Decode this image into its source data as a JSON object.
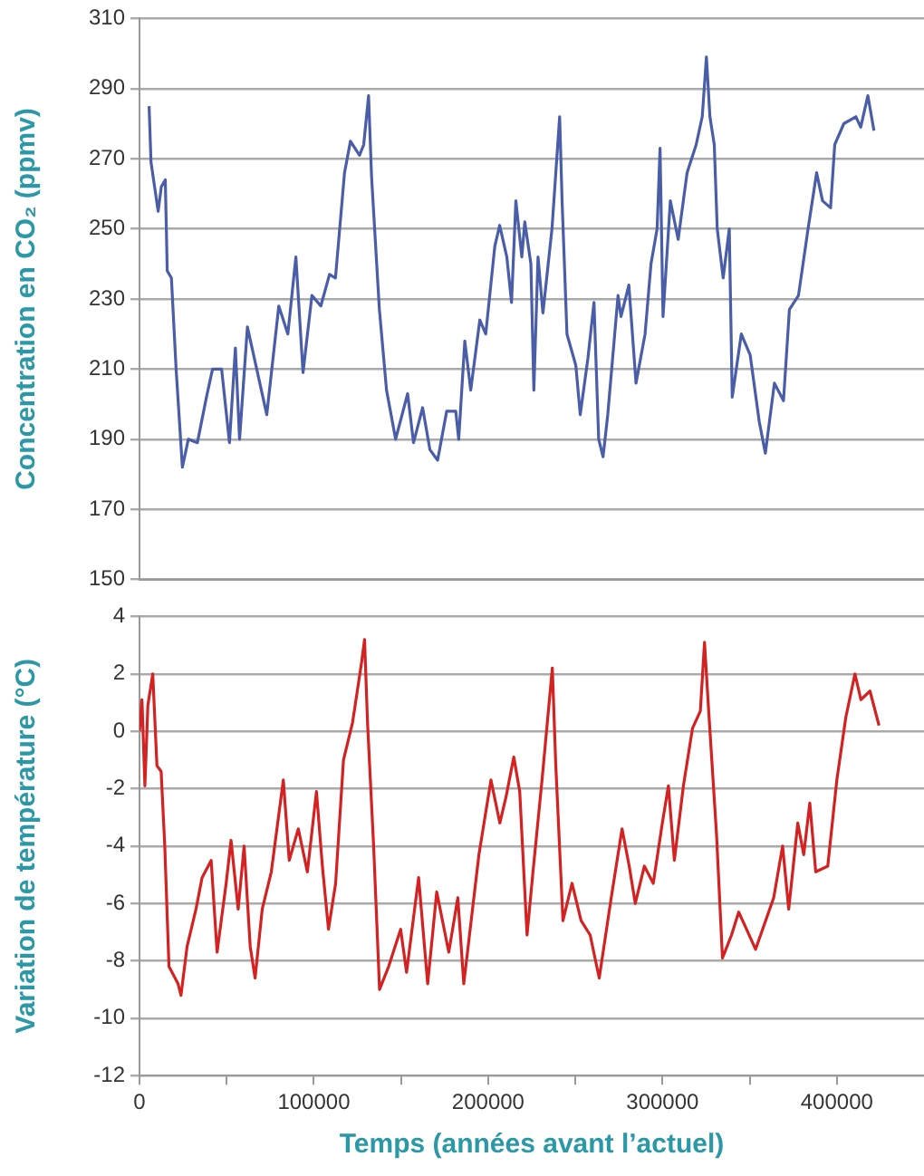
{
  "chart_data": [
    {
      "type": "line",
      "ylabel": "Concentration en CO₂ (ppmv)",
      "grid": "y",
      "tick_labels": "y",
      "xlim": [
        0,
        450000
      ],
      "xticks": [
        0,
        {
          "value": 50000,
          "label": null
        },
        100000,
        {
          "value": 150000,
          "label": null
        },
        200000,
        {
          "value": 250000,
          "label": null
        },
        300000,
        {
          "value": 350000,
          "label": null
        },
        400000
      ],
      "ylim": [
        150,
        310
      ],
      "yticks": [
        150,
        170,
        190,
        210,
        230,
        250,
        270,
        290,
        310
      ],
      "x": [
        5500,
        6600,
        10700,
        12500,
        14800,
        15900,
        18300,
        21000,
        24600,
        28000,
        33200,
        38400,
        41900,
        47100,
        51600,
        55000,
        57400,
        61900,
        73000,
        79900,
        85100,
        89700,
        93800,
        98900,
        104000,
        109000,
        112400,
        117600,
        121000,
        126200,
        128600,
        131400,
        133100,
        137600,
        141700,
        146900,
        153800,
        157200,
        162400,
        166600,
        171000,
        176200,
        181400,
        183100,
        186600,
        190000,
        195200,
        198600,
        203800,
        206600,
        210700,
        213400,
        215900,
        219300,
        221000,
        224500,
        226200,
        228600,
        231400,
        236600,
        241000,
        242400,
        245200,
        250300,
        252800,
        257200,
        260700,
        263400,
        265900,
        268600,
        274500,
        276200,
        280700,
        284800,
        290000,
        293400,
        296900,
        298600,
        300300,
        304500,
        309000,
        314100,
        319300,
        322800,
        325200,
        327200,
        329700,
        331400,
        334800,
        338300,
        340000,
        345200,
        350300,
        355500,
        359000,
        364200,
        369400,
        372800,
        378000,
        383200,
        388400,
        391800,
        396400,
        398800,
        404000,
        410900,
        413700,
        417800,
        421300
      ],
      "series": [
        {
          "color": "#4a5da8",
          "values": [
            285,
            269,
            255,
            262,
            264,
            238,
            236,
            210,
            182,
            190,
            189,
            202,
            210,
            210,
            189,
            216,
            190,
            222,
            197,
            228,
            220,
            242,
            209,
            231,
            228,
            237,
            236,
            266,
            275,
            271,
            274,
            288,
            265,
            227,
            204,
            190,
            203,
            189,
            199,
            187,
            184,
            198,
            198,
            190,
            218,
            204,
            224,
            220,
            245,
            251,
            242,
            229,
            258,
            242,
            252,
            240,
            204,
            242,
            226,
            250,
            282,
            258,
            220,
            211,
            197,
            213,
            229,
            190,
            185,
            197,
            231,
            225,
            234,
            206,
            220,
            240,
            250,
            273,
            225,
            258,
            247,
            266,
            274,
            282,
            299,
            282,
            274,
            250,
            236,
            250,
            202,
            220,
            214,
            195,
            186,
            206,
            201,
            227,
            231,
            249,
            266,
            258,
            256,
            274,
            280,
            282,
            279,
            288,
            278
          ]
        }
      ]
    },
    {
      "type": "line",
      "ylabel": "Variation de température (°C)",
      "xlabel": "Temps (années avant l’actuel)",
      "grid": "y",
      "xlim": [
        0,
        450000
      ],
      "xticks": [
        0,
        {
          "value": 50000,
          "label": null
        },
        100000,
        {
          "value": 150000,
          "label": null
        },
        200000,
        {
          "value": 250000,
          "label": null
        },
        300000,
        {
          "value": 350000,
          "label": null
        },
        400000
      ],
      "ylim": [
        -12,
        4
      ],
      "yticks": [
        -12,
        -10,
        -8,
        -6,
        -4,
        -2,
        0,
        2,
        4
      ],
      "x": [
        0,
        1400,
        3100,
        4800,
        7600,
        10000,
        12400,
        14500,
        16900,
        22100,
        23800,
        27300,
        32400,
        35900,
        41100,
        44500,
        49700,
        52500,
        56600,
        60000,
        63500,
        66300,
        70400,
        75600,
        82500,
        85900,
        91100,
        96300,
        101500,
        104900,
        108400,
        112500,
        117000,
        122200,
        127400,
        129100,
        130800,
        134300,
        137700,
        142900,
        149800,
        153200,
        160100,
        165300,
        170500,
        177400,
        182600,
        186000,
        194700,
        201600,
        206700,
        210200,
        214700,
        218100,
        222300,
        225700,
        230900,
        236800,
        238800,
        242900,
        248100,
        253300,
        258500,
        263700,
        270600,
        276800,
        280900,
        284400,
        289600,
        294700,
        299900,
        303400,
        306800,
        312000,
        317200,
        321700,
        324100,
        326500,
        331000,
        334400,
        339600,
        343700,
        348200,
        353400,
        358600,
        363800,
        368900,
        372400,
        377600,
        381000,
        384500,
        387900,
        394800,
        400000,
        405200,
        410400,
        413800,
        419000,
        424200
      ],
      "series": [
        {
          "color": "#d42222",
          "values": [
            0,
            1.1,
            -1.9,
            0.9,
            2.0,
            -1.2,
            -1.4,
            -4.0,
            -8.2,
            -8.8,
            -9.2,
            -7.5,
            -6.2,
            -5.1,
            -4.5,
            -7.7,
            -5.3,
            -3.8,
            -6.2,
            -4.0,
            -7.5,
            -8.6,
            -6.2,
            -4.9,
            -1.7,
            -4.5,
            -3.4,
            -4.9,
            -2.1,
            -4.7,
            -6.9,
            -5.3,
            -1.0,
            0.3,
            2.4,
            3.2,
            0.3,
            -4.0,
            -9.0,
            -8.2,
            -6.9,
            -8.4,
            -5.1,
            -8.8,
            -5.6,
            -7.7,
            -5.8,
            -8.8,
            -4.3,
            -1.7,
            -3.2,
            -2.3,
            -0.9,
            -2.1,
            -7.1,
            -4.9,
            -1.7,
            2.2,
            -1.2,
            -6.6,
            -5.3,
            -6.6,
            -7.1,
            -8.6,
            -5.8,
            -3.4,
            -4.7,
            -6.0,
            -4.7,
            -5.3,
            -3.2,
            -1.9,
            -4.5,
            -1.9,
            0.1,
            0.7,
            3.1,
            0.7,
            -3.6,
            -7.9,
            -7.1,
            -6.3,
            -6.9,
            -7.6,
            -6.7,
            -5.8,
            -4.0,
            -6.2,
            -3.2,
            -4.3,
            -2.5,
            -4.9,
            -4.7,
            -1.7,
            0.5,
            2.0,
            1.1,
            1.4,
            0.2
          ]
        }
      ]
    }
  ]
}
